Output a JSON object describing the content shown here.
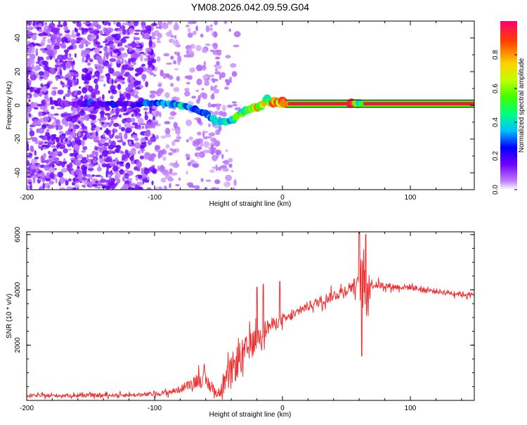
{
  "title": "YM08.2026.042.09.59.G04",
  "chart_data": [
    {
      "type": "heatmap",
      "name": "spectrogram",
      "xlabel": "Height of straight line (km)",
      "ylabel": "Frequency (Hz)",
      "xlim": [
        -200,
        150
      ],
      "ylim": [
        -50,
        50
      ],
      "xticks": [
        -200,
        -100,
        0,
        100
      ],
      "yticks": [
        -40,
        -20,
        0,
        20,
        40
      ],
      "tick_labels_x": [
        "-200",
        "-100",
        "0",
        "100"
      ],
      "tick_labels_y": [
        "-40",
        "-20",
        "0",
        "20",
        "40"
      ],
      "colorbar": {
        "label": "Normalized spectral amplitude",
        "range": [
          0,
          1
        ],
        "ticks": [
          0.0,
          0.2,
          0.4,
          0.6,
          0.8
        ],
        "tick_labels": [
          "0.0",
          "0.2",
          "0.4",
          "0.6",
          "0.8"
        ]
      },
      "ridge": {
        "x": [
          -175,
          -165,
          -150,
          -140,
          -130,
          -120,
          -110,
          -100,
          -90,
          -80,
          -70,
          -60,
          -55,
          -50,
          -45,
          -40,
          -35,
          -30,
          -25,
          -20,
          -15,
          -12,
          -10,
          -5,
          0,
          5,
          10,
          20,
          40,
          55,
          60,
          80,
          100,
          120,
          150
        ],
        "freq": [
          1.5,
          1,
          1,
          0.5,
          1,
          0.5,
          1,
          1,
          1,
          0.5,
          -2,
          -5,
          -8,
          -10,
          -10,
          -9,
          -6,
          -4,
          -2,
          -1,
          0,
          5,
          2,
          2,
          2,
          1.5,
          1,
          1,
          1,
          1,
          1,
          1,
          1,
          1,
          1
        ],
        "amplitude": [
          0.2,
          0.15,
          0.3,
          0.2,
          0.3,
          0.2,
          0.3,
          0.4,
          0.45,
          0.5,
          0.45,
          0.4,
          0.4,
          0.5,
          0.45,
          0.55,
          0.6,
          0.6,
          0.7,
          0.85,
          0.9,
          0.6,
          0.85,
          0.95,
          1.0,
          1.0,
          1.0,
          1.0,
          1.0,
          1.0,
          0.55,
          1.0,
          1.0,
          1.0,
          1.0
        ]
      }
    },
    {
      "type": "line",
      "name": "snr",
      "xlabel": "Height of straight line (km)",
      "ylabel": "SNR (10 * v/v)",
      "xlim": [
        -200,
        150
      ],
      "ylim": [
        0,
        6100
      ],
      "xticks": [
        -200,
        -100,
        0,
        100
      ],
      "yticks": [
        2000,
        4000,
        6000
      ],
      "tick_labels_x": [
        "-200",
        "-100",
        "0",
        "100"
      ],
      "tick_labels_y": [
        "2000",
        "4000",
        "6000"
      ],
      "color": "#f03030",
      "series": [
        {
          "name": "SNR",
          "x": [
            -200,
            -150,
            -110,
            -90,
            -80,
            -70,
            -65,
            -60,
            -50,
            -45,
            -40,
            -35,
            -30,
            -25,
            -20,
            -15,
            -10,
            -5,
            0,
            5,
            10,
            15,
            20,
            25,
            30,
            40,
            50,
            55,
            60,
            62,
            64,
            66,
            70,
            80,
            90,
            100,
            110,
            120,
            130,
            140,
            150
          ],
          "y": [
            170,
            180,
            200,
            280,
            400,
            650,
            800,
            700,
            200,
            600,
            1100,
            1400,
            1700,
            2000,
            2200,
            2500,
            2700,
            2800,
            2900,
            3000,
            3100,
            3300,
            3400,
            3500,
            3600,
            3800,
            4000,
            4150,
            4200,
            4300,
            3900,
            4200,
            4200,
            4150,
            4100,
            4100,
            4000,
            3950,
            3900,
            3850,
            3800
          ],
          "noise_amp": [
            80,
            80,
            90,
            120,
            150,
            250,
            400,
            400,
            150,
            500,
            700,
            800,
            700,
            600,
            500,
            450,
            350,
            250,
            250,
            200,
            200,
            200,
            220,
            220,
            250,
            250,
            280,
            300,
            400,
            1500,
            2000,
            1500,
            200,
            150,
            130,
            130,
            130,
            120,
            120,
            120,
            120
          ],
          "spikes": [
            [
              -20,
              4100
            ],
            [
              -15,
              4200
            ],
            [
              -2,
              4300
            ],
            [
              60,
              6100
            ],
            [
              65,
              6000
            ],
            [
              62,
              1600
            ]
          ]
        }
      ]
    }
  ]
}
